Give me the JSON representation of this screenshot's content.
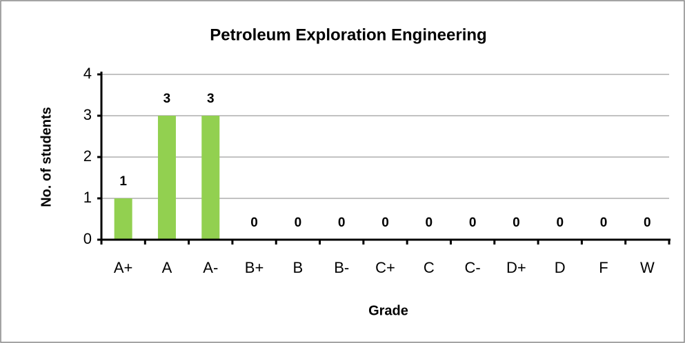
{
  "chart_data": {
    "type": "bar",
    "title": "Petroleum Exploration Engineering",
    "x_label": "Grade",
    "y_label": "No. of students",
    "categories": [
      "A+",
      "A",
      "A-",
      "B+",
      "B",
      "B-",
      "C+",
      "C",
      "C-",
      "D+",
      "D",
      "F",
      "W"
    ],
    "values": [
      1,
      3,
      3,
      0,
      0,
      0,
      0,
      0,
      0,
      0,
      0,
      0,
      0
    ],
    "color": "#92d050",
    "ylim": [
      0,
      4
    ],
    "yticks": [
      0,
      1,
      2,
      3,
      4
    ],
    "grid": true,
    "data_labels": true
  }
}
